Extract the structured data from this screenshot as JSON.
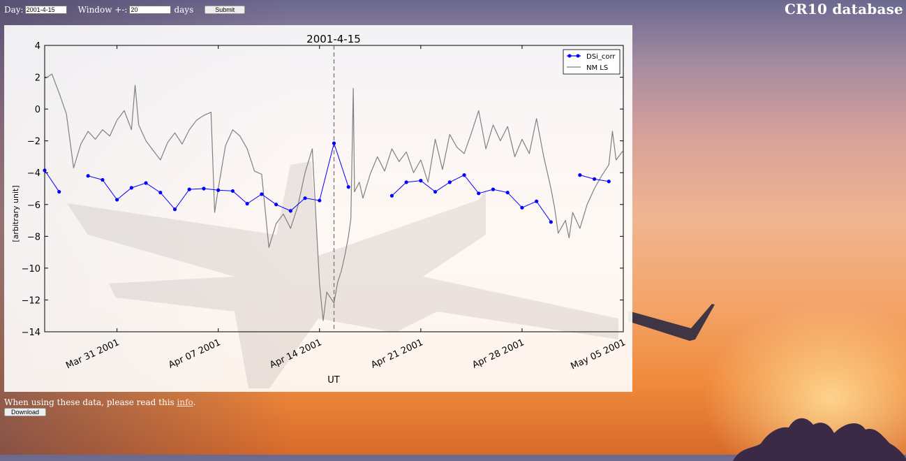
{
  "form": {
    "day_label": "Day:",
    "day_value": "2001-4-15",
    "window_label": "Window +-:",
    "window_value": "20",
    "days_label": "days",
    "submit_label": "Submit"
  },
  "site": {
    "title": "CR10 database"
  },
  "footer": {
    "note_prefix": "When using these data, please read this",
    "link_text": "info",
    "note_suffix": ".",
    "download_label": "Download"
  },
  "chart_data": {
    "type": "line",
    "title": "2001-4-15",
    "xlabel": "UT",
    "ylabel": "[arbitrary unit]",
    "xlim": [
      "2001-03-26",
      "2001-05-05"
    ],
    "ylim": [
      -14,
      4
    ],
    "x_ticks": [
      "Mar 31 2001",
      "Apr 07 2001",
      "Apr 14 2001",
      "Apr 21 2001",
      "Apr 28 2001",
      "May 05 2001"
    ],
    "y_ticks": [
      "4",
      "2",
      "0",
      "−2",
      "−4",
      "−6",
      "−8",
      "−10",
      "−12",
      "−14"
    ],
    "marker_date": "2001-04-15",
    "legend_position": "top-right",
    "series": [
      {
        "name": "DSi_corr",
        "color": "#0000ff",
        "style": "line-dots",
        "segments": [
          [
            [
              "2001-03-26",
              -3.85
            ],
            [
              "2001-03-27",
              -5.2
            ]
          ],
          [
            [
              "2001-03-29",
              -4.2
            ],
            [
              "2001-03-30",
              -4.45
            ],
            [
              "2001-03-31",
              -5.7
            ],
            [
              "2001-04-01",
              -4.95
            ],
            [
              "2001-04-02",
              -4.65
            ],
            [
              "2001-04-03",
              -5.25
            ],
            [
              "2001-04-04",
              -6.3
            ],
            [
              "2001-04-05",
              -5.05
            ],
            [
              "2001-04-06",
              -5.0
            ],
            [
              "2001-04-07",
              -5.1
            ],
            [
              "2001-04-08",
              -5.15
            ],
            [
              "2001-04-09",
              -5.95
            ],
            [
              "2001-04-10",
              -5.35
            ],
            [
              "2001-04-11",
              -6.0
            ],
            [
              "2001-04-12",
              -6.4
            ],
            [
              "2001-04-13",
              -5.6
            ],
            [
              "2001-04-14",
              -5.75
            ],
            [
              "2001-04-15",
              -2.15
            ],
            [
              "2001-04-16",
              -4.9
            ]
          ],
          [
            [
              "2001-04-19",
              -5.45
            ],
            [
              "2001-04-20",
              -4.6
            ],
            [
              "2001-04-21",
              -4.5
            ],
            [
              "2001-04-22",
              -5.2
            ],
            [
              "2001-04-23",
              -4.6
            ],
            [
              "2001-04-24",
              -4.15
            ],
            [
              "2001-04-25",
              -5.3
            ],
            [
              "2001-04-26",
              -5.05
            ],
            [
              "2001-04-27",
              -5.25
            ],
            [
              "2001-04-28",
              -6.2
            ],
            [
              "2001-04-29",
              -5.8
            ],
            [
              "2001-04-30",
              -7.1
            ]
          ],
          [
            [
              "2001-05-02",
              -4.15
            ],
            [
              "2001-05-03",
              -4.4
            ],
            [
              "2001-05-04",
              -4.55
            ]
          ]
        ]
      },
      {
        "name": "NM LS",
        "color": "#808080",
        "style": "line",
        "points": [
          [
            "2001-03-26",
            1.9
          ],
          [
            "2001-03-26 12:00",
            2.2
          ],
          [
            "2001-03-27",
            1.0
          ],
          [
            "2001-03-27 12:00",
            -0.3
          ],
          [
            "2001-03-28",
            -3.7
          ],
          [
            "2001-03-28 12:00",
            -2.2
          ],
          [
            "2001-03-29",
            -1.4
          ],
          [
            "2001-03-29 12:00",
            -1.9
          ],
          [
            "2001-03-30",
            -1.3
          ],
          [
            "2001-03-30 12:00",
            -1.7
          ],
          [
            "2001-03-31",
            -0.7
          ],
          [
            "2001-03-31 12:00",
            -0.1
          ],
          [
            "2001-04-01",
            -1.3
          ],
          [
            "2001-04-01 06:00",
            1.5
          ],
          [
            "2001-04-01 12:00",
            -1.0
          ],
          [
            "2001-04-02",
            -2.0
          ],
          [
            "2001-04-02 12:00",
            -2.6
          ],
          [
            "2001-04-03",
            -3.2
          ],
          [
            "2001-04-03 12:00",
            -2.1
          ],
          [
            "2001-04-04",
            -1.5
          ],
          [
            "2001-04-04 12:00",
            -2.2
          ],
          [
            "2001-04-05",
            -1.3
          ],
          [
            "2001-04-05 12:00",
            -0.7
          ],
          [
            "2001-04-06",
            -0.4
          ],
          [
            "2001-04-06 12:00",
            -0.2
          ],
          [
            "2001-04-06 18:00",
            -6.5
          ],
          [
            "2001-04-07",
            -5.0
          ],
          [
            "2001-04-07 12:00",
            -2.3
          ],
          [
            "2001-04-08",
            -1.3
          ],
          [
            "2001-04-08 12:00",
            -1.7
          ],
          [
            "2001-04-09",
            -2.5
          ],
          [
            "2001-04-09 12:00",
            -3.9
          ],
          [
            "2001-04-10",
            -4.1
          ],
          [
            "2001-04-10 12:00",
            -8.7
          ],
          [
            "2001-04-11",
            -7.2
          ],
          [
            "2001-04-11 12:00",
            -6.6
          ],
          [
            "2001-04-12",
            -7.5
          ],
          [
            "2001-04-12 12:00",
            -6.1
          ],
          [
            "2001-04-13",
            -4.0
          ],
          [
            "2001-04-13 12:00",
            -2.5
          ],
          [
            "2001-04-14",
            -11.0
          ],
          [
            "2001-04-14 06:00",
            -13.3
          ],
          [
            "2001-04-14 12:00",
            -11.5
          ],
          [
            "2001-04-15",
            -12.2
          ],
          [
            "2001-04-15 06:00",
            -10.9
          ],
          [
            "2001-04-15 12:00",
            -10.2
          ],
          [
            "2001-04-15 18:00",
            -9.2
          ],
          [
            "2001-04-16",
            -8.0
          ],
          [
            "2001-04-16 04:00",
            -6.9
          ],
          [
            "2001-04-16 08:00",
            1.3
          ],
          [
            "2001-04-16 10:00",
            -5.2
          ],
          [
            "2001-04-16 18:00",
            -4.6
          ],
          [
            "2001-04-17",
            -5.6
          ],
          [
            "2001-04-17 12:00",
            -4.1
          ],
          [
            "2001-04-18",
            -3.0
          ],
          [
            "2001-04-18 12:00",
            -3.9
          ],
          [
            "2001-04-19",
            -2.5
          ],
          [
            "2001-04-19 12:00",
            -3.3
          ],
          [
            "2001-04-20",
            -2.7
          ],
          [
            "2001-04-20 12:00",
            -4.0
          ],
          [
            "2001-04-21",
            -3.2
          ],
          [
            "2001-04-21 12:00",
            -4.6
          ],
          [
            "2001-04-22",
            -1.9
          ],
          [
            "2001-04-22 12:00",
            -3.8
          ],
          [
            "2001-04-23",
            -1.6
          ],
          [
            "2001-04-23 12:00",
            -2.4
          ],
          [
            "2001-04-24",
            -2.8
          ],
          [
            "2001-04-24 12:00",
            -1.5
          ],
          [
            "2001-04-25",
            -0.1
          ],
          [
            "2001-04-25 12:00",
            -2.5
          ],
          [
            "2001-04-26",
            -1.0
          ],
          [
            "2001-04-26 12:00",
            -2.0
          ],
          [
            "2001-04-27",
            -1.1
          ],
          [
            "2001-04-27 12:00",
            -3.0
          ],
          [
            "2001-04-28",
            -1.9
          ],
          [
            "2001-04-28 12:00",
            -2.8
          ],
          [
            "2001-04-29",
            -0.6
          ],
          [
            "2001-04-29 12:00",
            -3.0
          ],
          [
            "2001-04-30",
            -5.0
          ],
          [
            "2001-04-30 06:00",
            -6.2
          ],
          [
            "2001-04-30 12:00",
            -7.8
          ],
          [
            "2001-05-01",
            -7.0
          ],
          [
            "2001-05-01 06:00",
            -8.1
          ],
          [
            "2001-05-01 12:00",
            -6.5
          ],
          [
            "2001-05-02",
            -7.5
          ],
          [
            "2001-05-02 12:00",
            -6.0
          ],
          [
            "2001-05-03",
            -5.0
          ],
          [
            "2001-05-03 12:00",
            -4.2
          ],
          [
            "2001-05-04",
            -3.5
          ],
          [
            "2001-05-04 06:00",
            -1.4
          ],
          [
            "2001-05-04 12:00",
            -3.2
          ],
          [
            "2001-05-05",
            -2.6
          ]
        ]
      }
    ]
  }
}
